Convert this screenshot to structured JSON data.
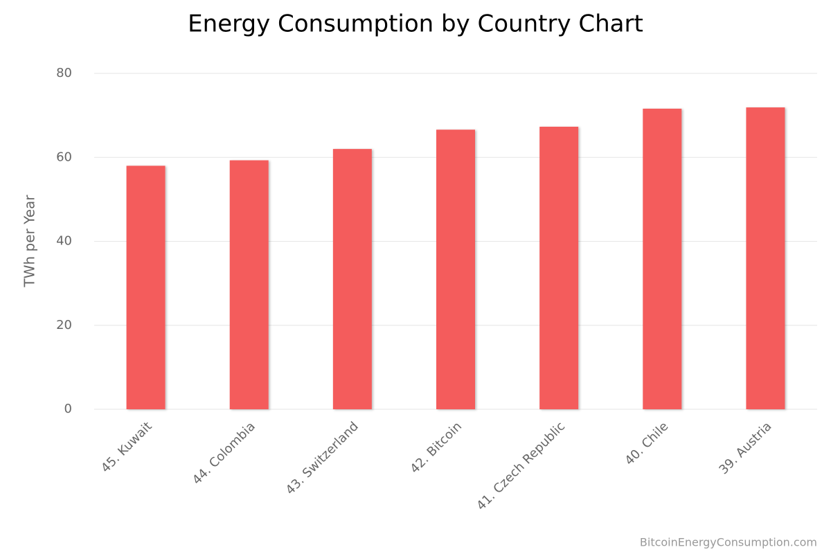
{
  "chart_data": {
    "type": "bar",
    "title": "Energy Consumption by Country Chart",
    "y_label": "TWh per Year",
    "credits": "BitcoinEnergyConsumption.com",
    "categories": [
      "45. Kuwait",
      "44. Colombia",
      "43. Switzerland",
      "42. Bitcoin",
      "41. Czech Republic",
      "40. Chile",
      "39. Austria"
    ],
    "values": [
      58.0,
      59.3,
      62.0,
      66.6,
      67.3,
      71.6,
      71.9
    ],
    "color": "#f45b5b",
    "ylim": [
      0,
      80
    ],
    "yticks": [
      0,
      20,
      40,
      60,
      80
    ],
    "grid": true
  }
}
